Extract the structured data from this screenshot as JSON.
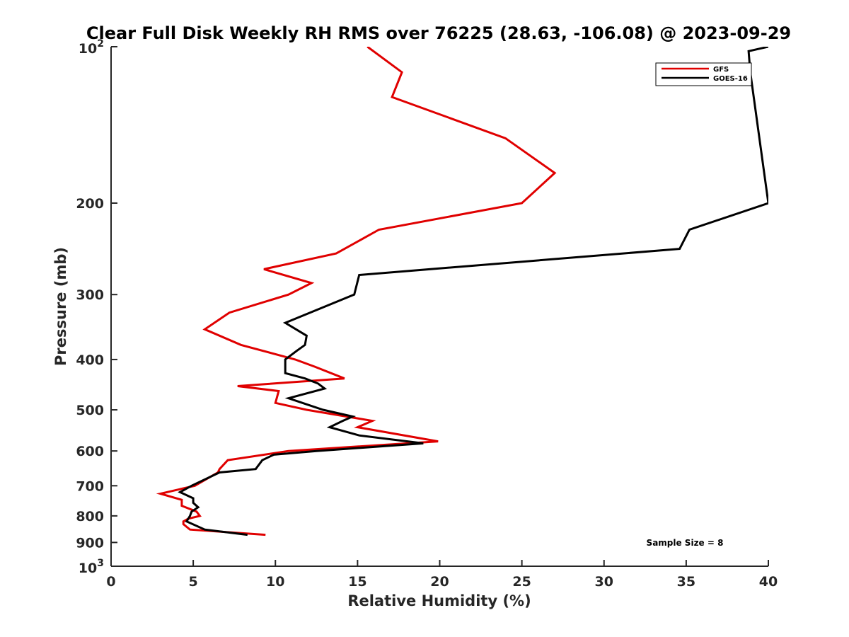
{
  "chart_data": {
    "type": "line",
    "title": "Clear Full Disk Weekly RH RMS over 76225 (28.63, -106.08) @ 2023-09-29",
    "xlabel": "Relative Humidity (%)",
    "ylabel": "Pressure (mb)",
    "xlim": [
      0,
      40
    ],
    "ylim": [
      100,
      1000
    ],
    "y_scale": "log",
    "y_reversed": true,
    "x_ticks": [
      0,
      5,
      10,
      15,
      20,
      25,
      30,
      35,
      40
    ],
    "x_tick_labels": [
      "0",
      "5",
      "10",
      "15",
      "20",
      "25",
      "30",
      "35",
      "40"
    ],
    "y_ticks": [
      100,
      200,
      300,
      400,
      500,
      600,
      700,
      800,
      900,
      1000
    ],
    "y_tick_labels": [
      "",
      "200",
      "300",
      "400",
      "500",
      "600",
      "700",
      "800",
      "900",
      ""
    ],
    "y_tick_power_labels": [
      {
        "value": 100,
        "base": "10",
        "exp": "2"
      },
      {
        "value": 1000,
        "base": "10",
        "exp": "3"
      }
    ],
    "legend_position": "top-right",
    "annotation": "Sample Size = 8",
    "series": [
      {
        "name": "GFS",
        "color": "#e00000",
        "x": [
          15.6,
          17.7,
          17.1,
          24.0,
          27.0,
          25.0,
          16.3,
          13.7,
          9.3,
          12.2,
          10.8,
          7.2,
          5.7,
          7.9,
          11.2,
          12.4,
          14.2,
          7.7,
          10.2,
          10.0,
          11.9,
          15.9,
          15.0,
          19.9,
          10.8,
          7.1,
          6.6,
          6.5,
          5.1,
          3.0,
          4.3,
          4.3,
          5.2,
          5.4,
          4.7,
          4.4,
          4.4,
          4.8,
          9.4
        ],
        "y": [
          100,
          112,
          125,
          150,
          175,
          200,
          225,
          250,
          268,
          285,
          300,
          325,
          350,
          375,
          400,
          413,
          435,
          450,
          460,
          485,
          500,
          525,
          540,
          575,
          600,
          625,
          650,
          660,
          700,
          725,
          745,
          765,
          785,
          800,
          810,
          820,
          830,
          850,
          870
        ]
      },
      {
        "name": "GOES-16",
        "color": "#000000",
        "x": [
          40.0,
          38.8,
          38.9,
          40.0,
          35.2,
          34.6,
          15.1,
          14.8,
          10.6,
          11.9,
          11.8,
          11.3,
          10.6,
          10.6,
          11.8,
          12.6,
          13.0,
          10.8,
          12.9,
          14.7,
          14.1,
          13.3,
          15.1,
          19.0,
          12.5,
          9.9,
          9.2,
          8.8,
          6.6,
          4.9,
          4.2,
          5.0,
          5.0,
          5.3,
          4.9,
          4.8,
          4.6,
          5.7,
          8.3
        ],
        "y": [
          100,
          102,
          112,
          200,
          225,
          245,
          275,
          300,
          340,
          360,
          375,
          385,
          400,
          425,
          435,
          445,
          455,
          475,
          500,
          515,
          525,
          540,
          560,
          580,
          600,
          610,
          625,
          650,
          660,
          700,
          720,
          740,
          755,
          770,
          785,
          800,
          820,
          850,
          870
        ]
      }
    ]
  }
}
